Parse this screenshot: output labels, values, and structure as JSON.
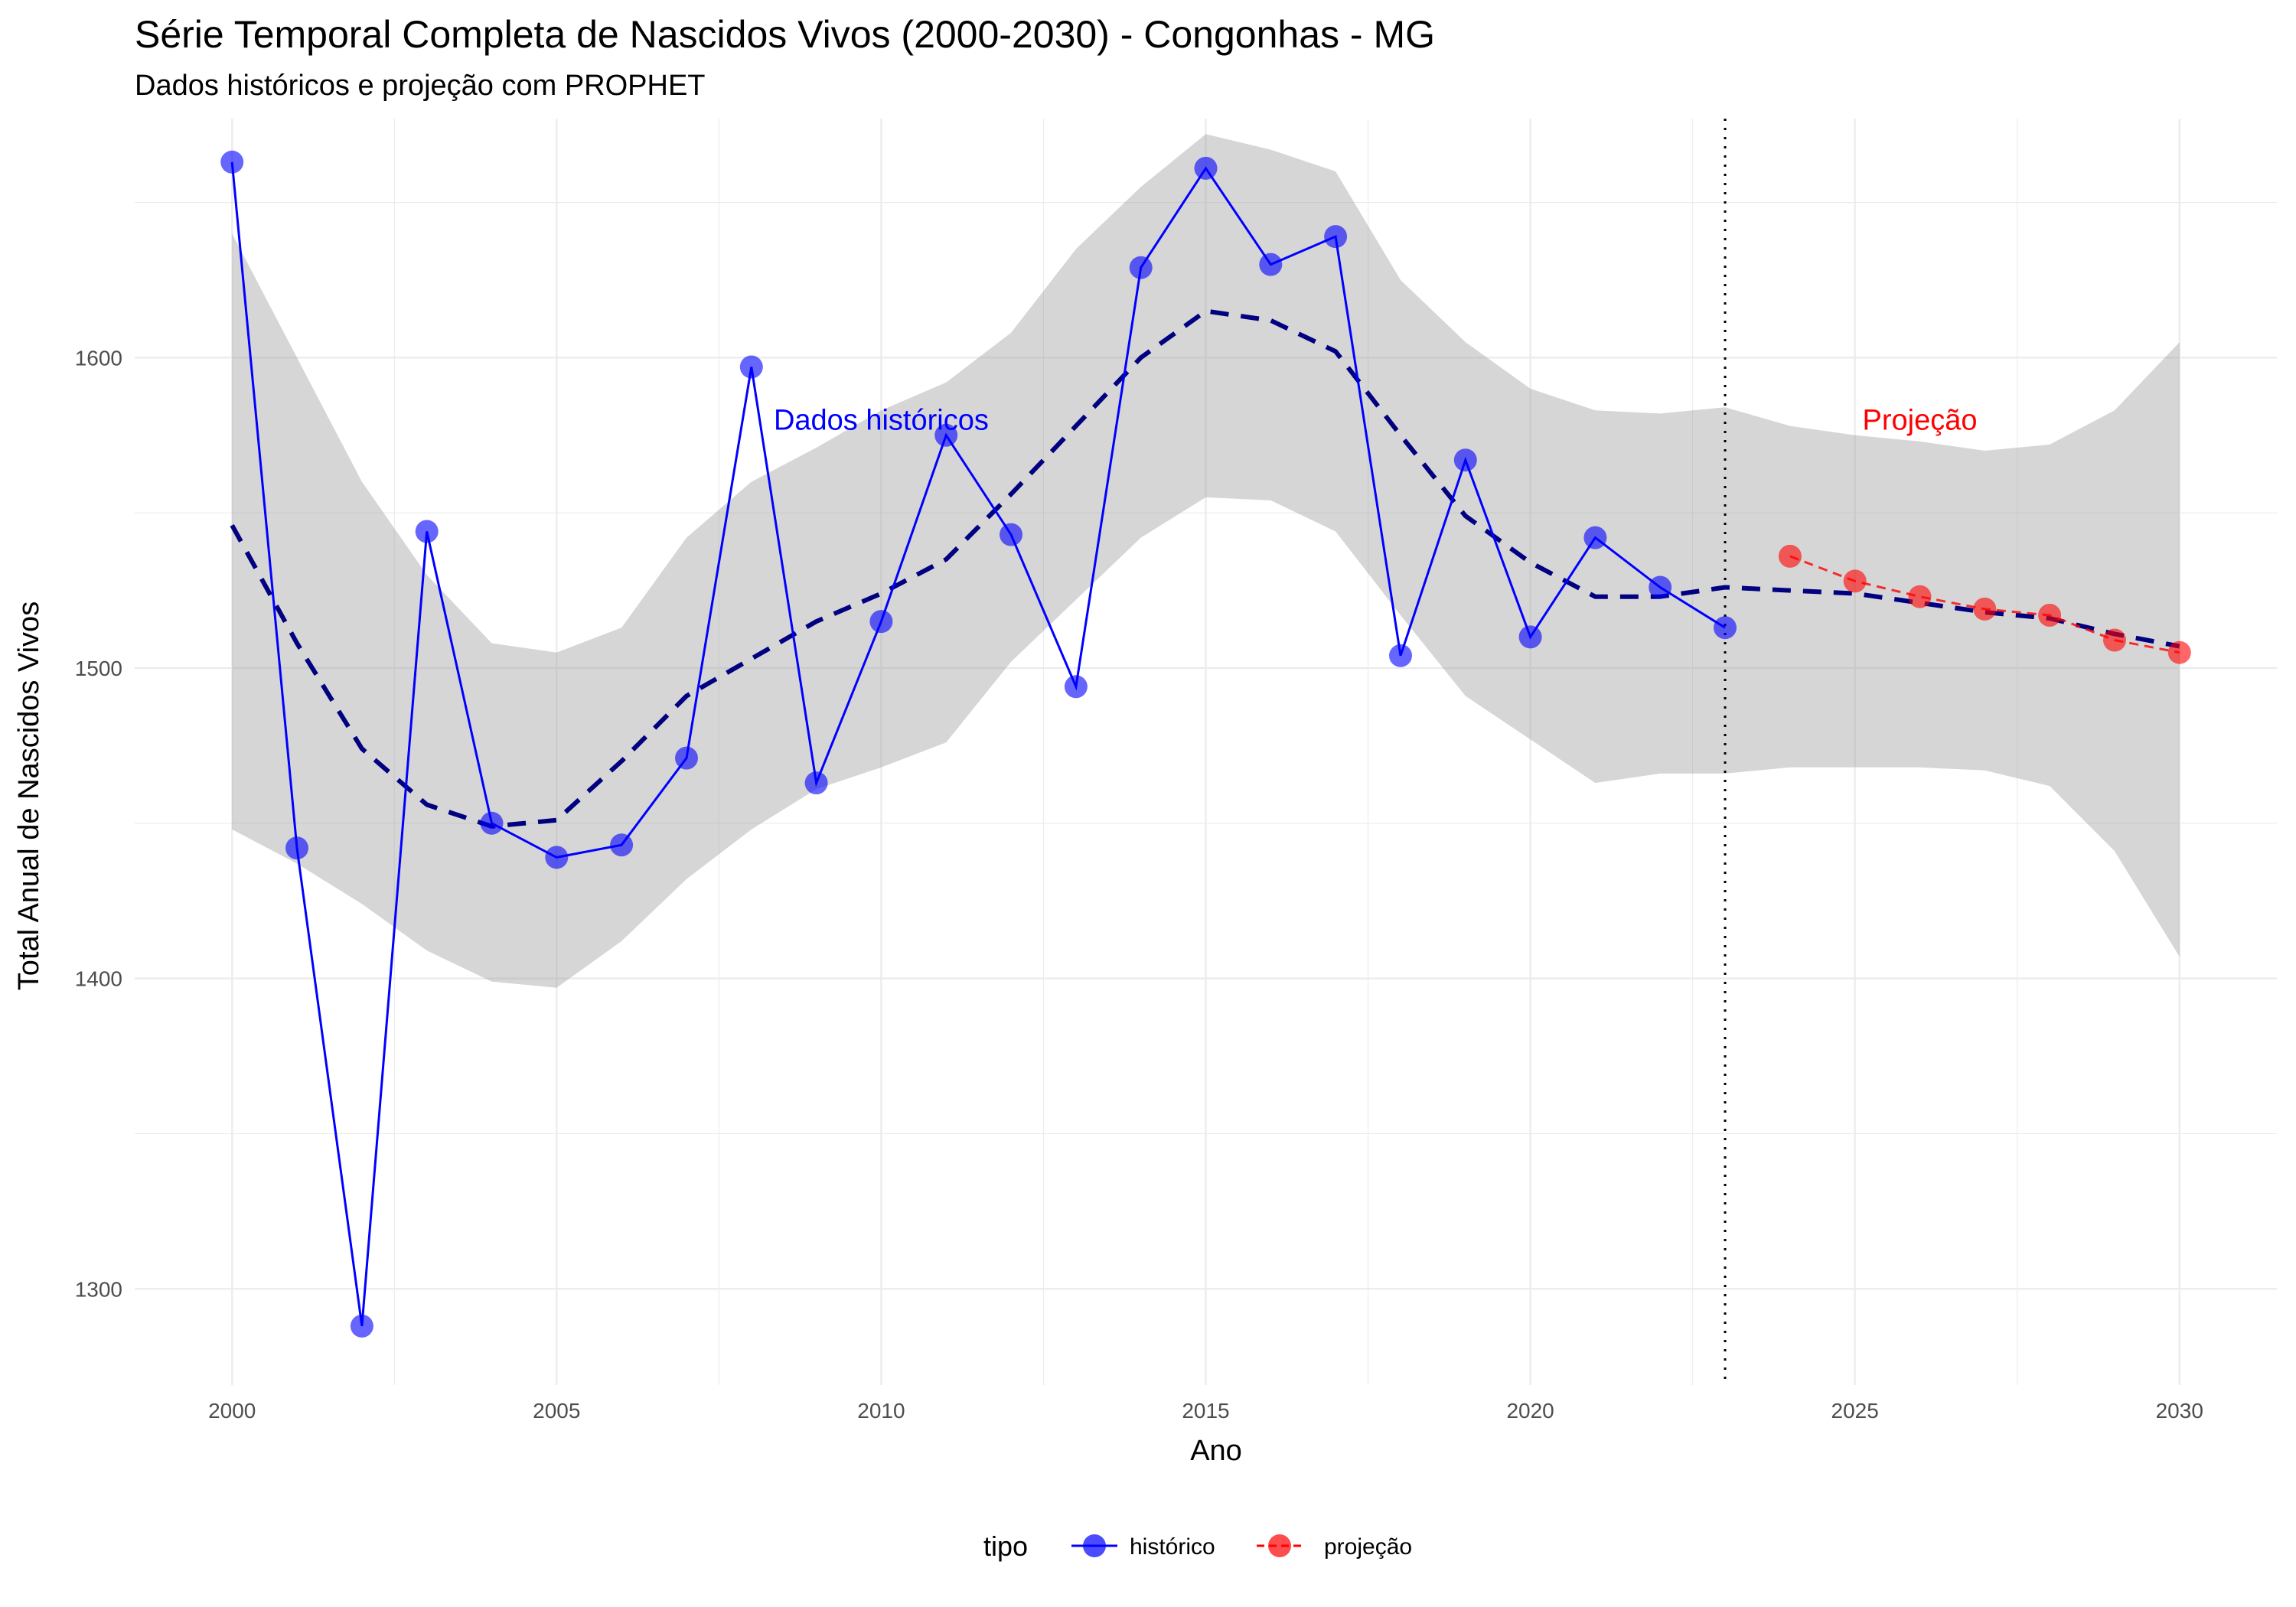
{
  "chart_data": {
    "type": "line",
    "title": "Série Temporal Completa de Nascidos Vivos (2000-2030) -  Congonhas - MG",
    "subtitle": "Dados históricos e projeção com PROPHET",
    "xlabel": "Ano",
    "ylabel": "Total Anual de Nascidos Vivos",
    "xlim": [
      1998.5,
      2031.5
    ],
    "ylim": [
      1269,
      1677
    ],
    "x_ticks": [
      2000,
      2005,
      2010,
      2015,
      2020,
      2025,
      2030
    ],
    "y_ticks": [
      1300,
      1400,
      1500,
      1600
    ],
    "grid": true,
    "legend": {
      "title": "tipo",
      "position": "bottom",
      "entries": [
        {
          "label": "histórico",
          "color": "#0000ff"
        },
        {
          "label": "projeção",
          "color": "#ff0000"
        }
      ]
    },
    "series": [
      {
        "name": "histórico",
        "color": "#0000ff",
        "x": [
          2000,
          2001,
          2002,
          2003,
          2004,
          2005,
          2006,
          2007,
          2008,
          2009,
          2010,
          2011,
          2012,
          2013,
          2014,
          2015,
          2016,
          2017,
          2018,
          2019,
          2020,
          2021,
          2022,
          2023
        ],
        "y": [
          1663,
          1442,
          1288,
          1544,
          1450,
          1439,
          1443,
          1471,
          1597,
          1463,
          1515,
          1575,
          1543,
          1494,
          1629,
          1661,
          1630,
          1639,
          1504,
          1567,
          1510,
          1542,
          1526,
          1513
        ]
      },
      {
        "name": "projeção",
        "color": "#ff0000",
        "x": [
          2024,
          2025,
          2026,
          2027,
          2028,
          2029,
          2030
        ],
        "y": [
          1536,
          1528,
          1523,
          1519,
          1517,
          1509,
          1505
        ]
      }
    ],
    "trend": {
      "color": "#000080",
      "x": [
        2000,
        2001,
        2002,
        2003,
        2004,
        2005,
        2006,
        2007,
        2008,
        2009,
        2010,
        2011,
        2012,
        2013,
        2014,
        2015,
        2016,
        2017,
        2018,
        2019,
        2020,
        2021,
        2022,
        2023,
        2024,
        2025,
        2026,
        2027,
        2028,
        2029,
        2030
      ],
      "y": [
        1546,
        1508,
        1474,
        1456,
        1449,
        1451,
        1470,
        1491,
        1503,
        1515,
        1524,
        1535,
        1556,
        1578,
        1600,
        1615,
        1612,
        1602,
        1575,
        1549,
        1534,
        1523,
        1523,
        1526,
        1525,
        1524,
        1521,
        1518,
        1516,
        1511,
        1507
      ]
    },
    "interval": {
      "x": [
        2000,
        2001,
        2002,
        2003,
        2004,
        2005,
        2006,
        2007,
        2008,
        2009,
        2010,
        2011,
        2012,
        2013,
        2014,
        2015,
        2016,
        2017,
        2018,
        2019,
        2020,
        2021,
        2022,
        2023,
        2024,
        2025,
        2026,
        2027,
        2028,
        2029,
        2030
      ],
      "lower": [
        1448,
        1437,
        1424,
        1409,
        1399,
        1397,
        1412,
        1432,
        1448,
        1461,
        1468,
        1476,
        1502,
        1522,
        1542,
        1555,
        1554,
        1544,
        1517,
        1491,
        1477,
        1463,
        1466,
        1466,
        1468,
        1468,
        1468,
        1467,
        1462,
        1441,
        1407
      ],
      "upper": [
        1640,
        1600,
        1560,
        1530,
        1508,
        1505,
        1513,
        1542,
        1560,
        1571,
        1583,
        1592,
        1608,
        1635,
        1655,
        1672,
        1667,
        1660,
        1625,
        1605,
        1590,
        1583,
        1582,
        1584,
        1578,
        1575,
        1573,
        1570,
        1572,
        1583,
        1605
      ]
    },
    "divider_x": 2023,
    "annotations": [
      {
        "text": "Dados históricos",
        "x": 2010,
        "y": 1580,
        "color": "#0000ff"
      },
      {
        "text": "Projeção",
        "x": 2026,
        "y": 1580,
        "color": "#ff0000"
      }
    ]
  }
}
